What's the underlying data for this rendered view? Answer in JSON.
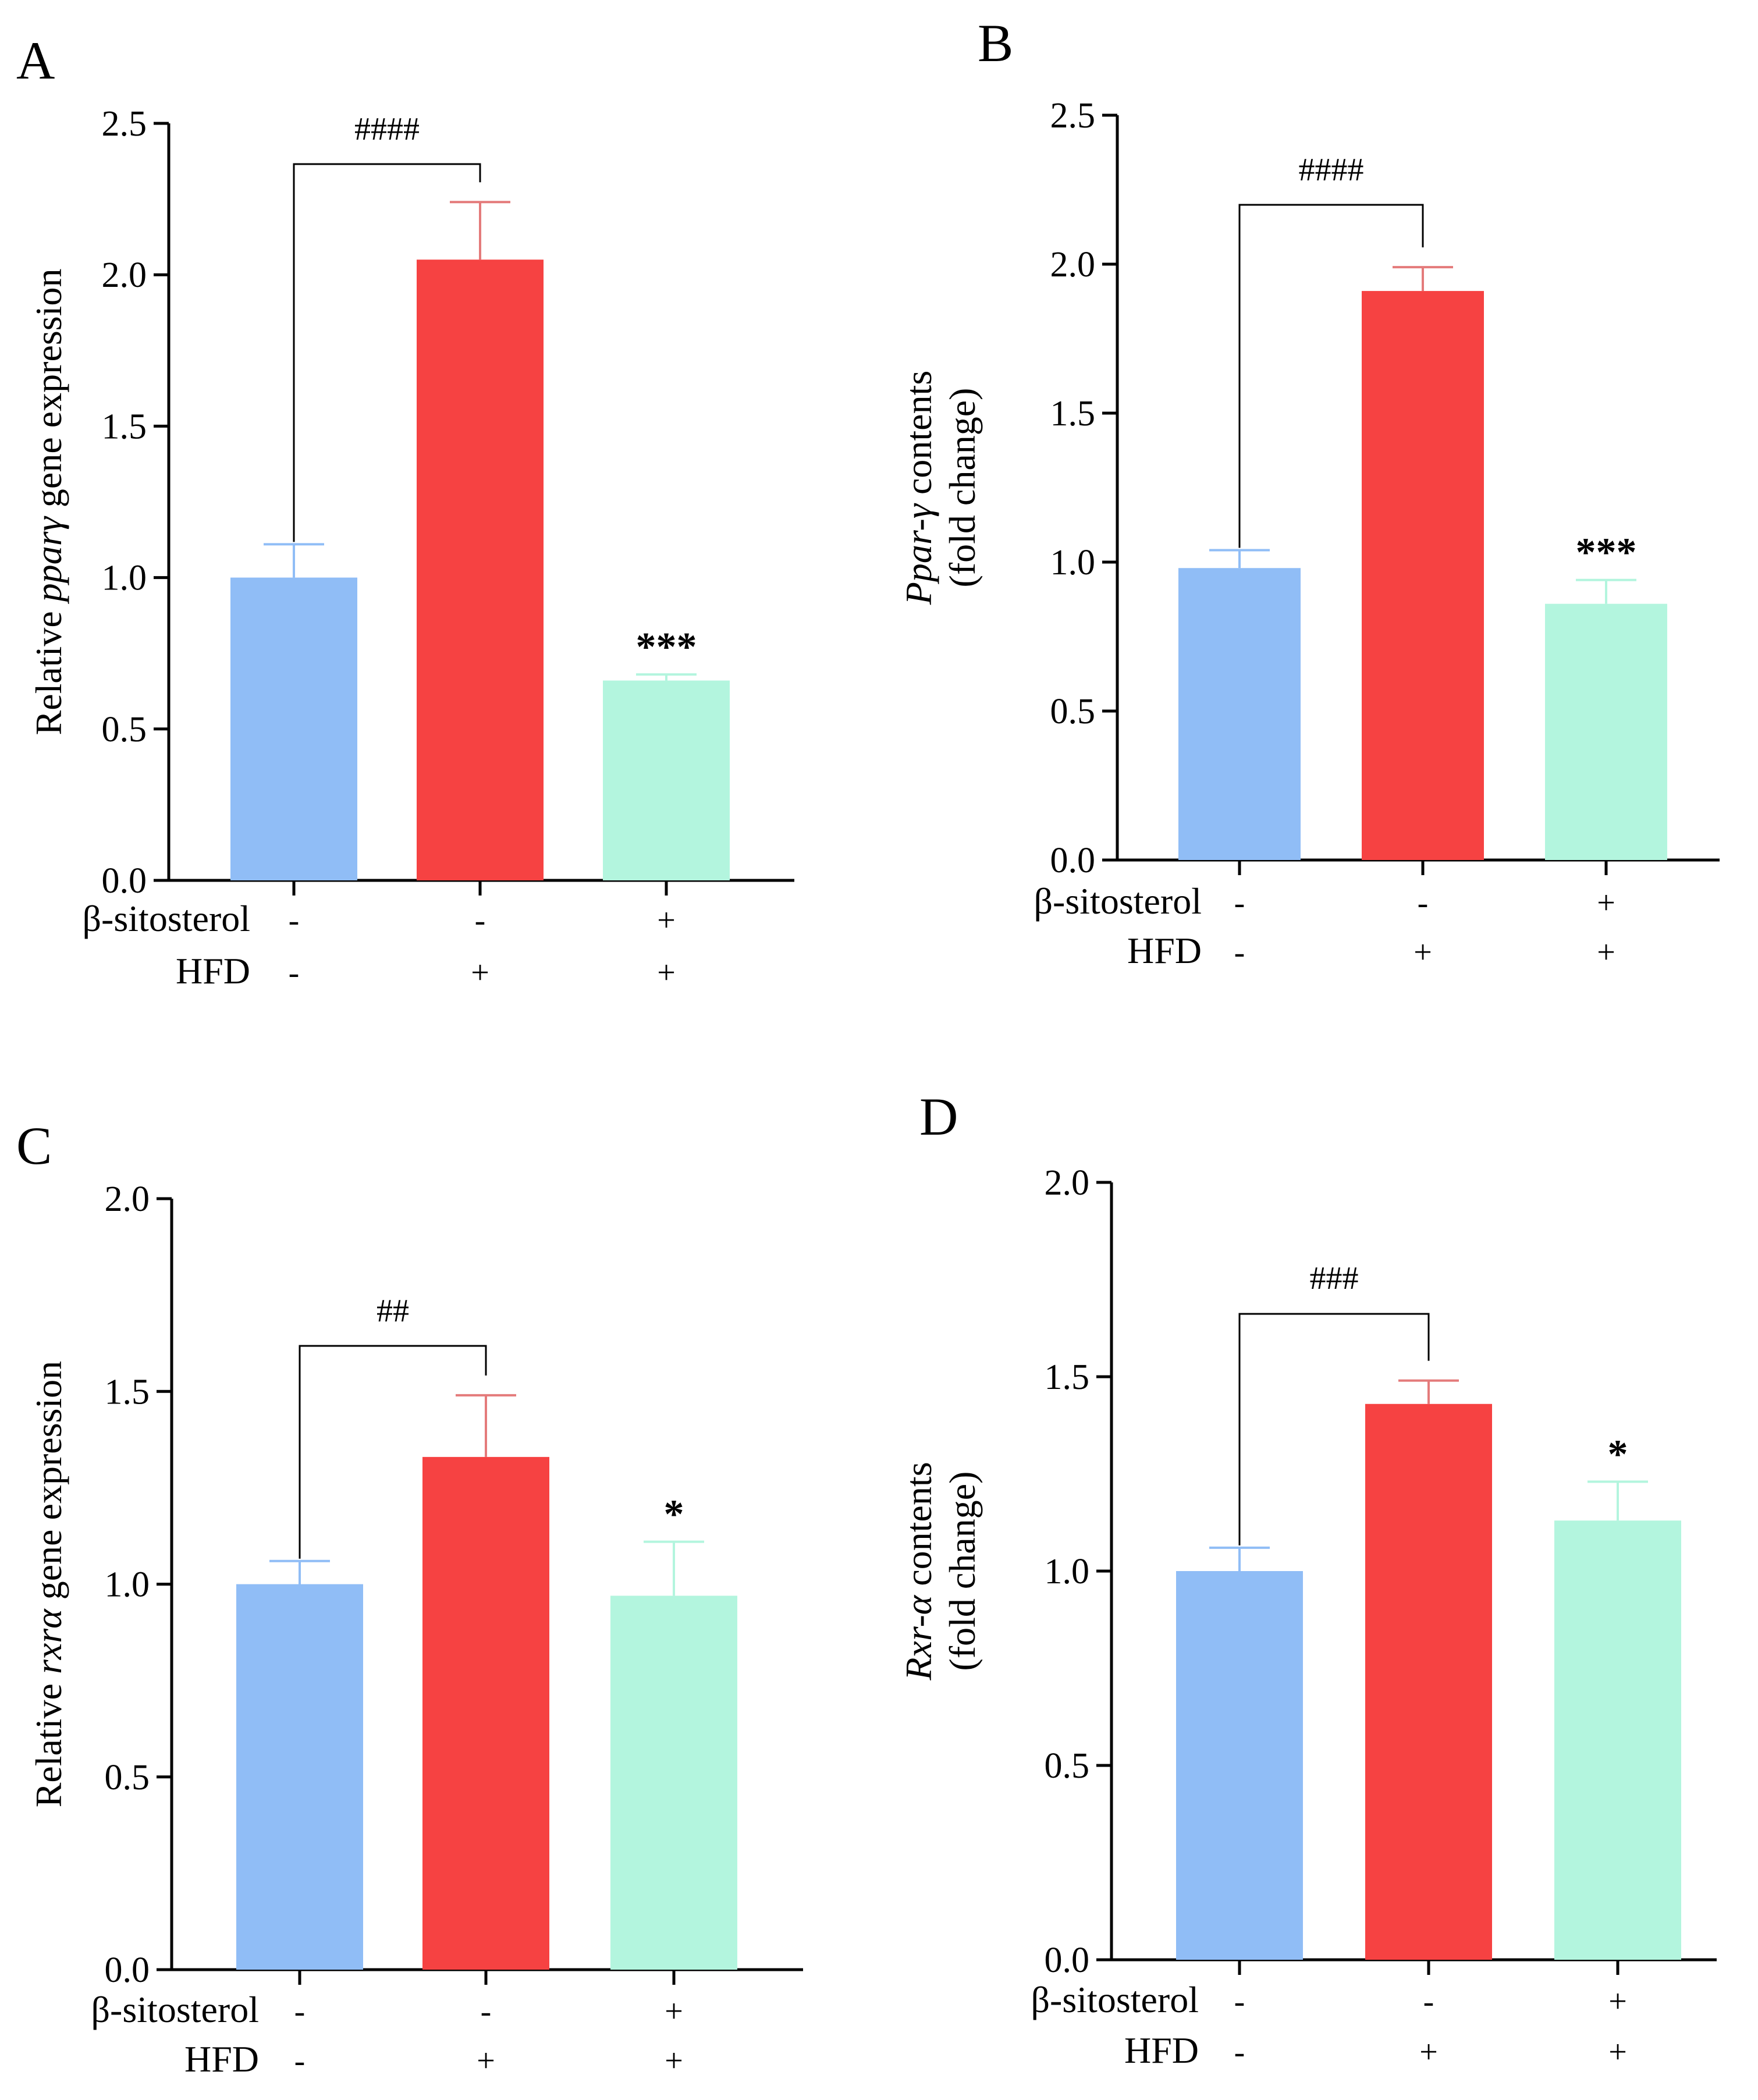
{
  "chart_data": [
    {
      "panel": "A",
      "type": "bar",
      "ylabel_prefix": "Relative ",
      "ylabel_italic": "pparγ",
      "ylabel_suffix": " gene expression",
      "ylabel_line2": "",
      "ylim": [
        0,
        2.5
      ],
      "yticks": [
        "0.0",
        "0.5",
        "1.0",
        "1.5",
        "2.0",
        "2.5"
      ],
      "ytick_values": [
        0,
        0.5,
        1.0,
        1.5,
        2.0,
        2.5
      ],
      "values": [
        1.0,
        2.05,
        0.66
      ],
      "errors": [
        0.11,
        0.19,
        0.02
      ],
      "annotations": [
        "",
        "",
        "***"
      ],
      "bracket": {
        "from": 0,
        "to": 1,
        "label": "####"
      },
      "row_labels": [
        "β-sitosterol",
        "HFD"
      ],
      "rows": [
        [
          "-",
          "-",
          "+"
        ],
        [
          "-",
          "+",
          "+"
        ]
      ]
    },
    {
      "panel": "B",
      "type": "bar",
      "ylabel_prefix": "",
      "ylabel_italic": "Ppar-γ",
      "ylabel_suffix": " contents",
      "ylabel_line2": "(fold change)",
      "ylim": [
        0,
        2.5
      ],
      "yticks": [
        "0.0",
        "0.5",
        "1.0",
        "1.5",
        "2.0",
        "2.5"
      ],
      "ytick_values": [
        0,
        0.5,
        1.0,
        1.5,
        2.0,
        2.5
      ],
      "values": [
        0.98,
        1.91,
        0.86
      ],
      "errors": [
        0.06,
        0.08,
        0.08
      ],
      "annotations": [
        "",
        "",
        "***"
      ],
      "bracket": {
        "from": 0,
        "to": 1,
        "label": "####"
      },
      "row_labels": [
        "β-sitosterol",
        "HFD"
      ],
      "rows": [
        [
          "-",
          "-",
          "+"
        ],
        [
          "-",
          "+",
          "+"
        ]
      ]
    },
    {
      "panel": "C",
      "type": "bar",
      "ylabel_prefix": "Relative ",
      "ylabel_italic": "rxrα",
      "ylabel_suffix": " gene expression",
      "ylabel_line2": "",
      "ylim": [
        0,
        2.0
      ],
      "yticks": [
        "0.0",
        "0.5",
        "1.0",
        "1.5",
        "2.0"
      ],
      "ytick_values": [
        0,
        0.5,
        1.0,
        1.5,
        2.0
      ],
      "values": [
        1.0,
        1.33,
        0.97
      ],
      "errors": [
        0.06,
        0.16,
        0.14
      ],
      "annotations": [
        "",
        "",
        "*"
      ],
      "bracket": {
        "from": 0,
        "to": 1,
        "label": "##"
      },
      "row_labels": [
        "β-sitosterol",
        "HFD"
      ],
      "rows": [
        [
          "-",
          "-",
          "+"
        ],
        [
          "-",
          "+",
          "+"
        ]
      ]
    },
    {
      "panel": "D",
      "type": "bar",
      "ylabel_prefix": "",
      "ylabel_italic": "Rxr-α",
      "ylabel_suffix": " contents",
      "ylabel_line2": "(fold change)",
      "ylim": [
        0,
        2.0
      ],
      "yticks": [
        "0.0",
        "0.5",
        "1.0",
        "1.5",
        "2.0"
      ],
      "ytick_values": [
        0,
        0.5,
        1.0,
        1.5,
        2.0
      ],
      "values": [
        1.0,
        1.43,
        1.13
      ],
      "errors": [
        0.06,
        0.06,
        0.1
      ],
      "annotations": [
        "",
        "",
        "*"
      ],
      "bracket": {
        "from": 0,
        "to": 1,
        "label": "###"
      },
      "row_labels": [
        "β-sitosterol",
        "HFD"
      ],
      "rows": [
        [
          "-",
          "-",
          "+"
        ],
        [
          "-",
          "+",
          "+"
        ]
      ]
    }
  ],
  "colors": {
    "bars": [
      "#90bdf6",
      "#f64242",
      "#b3f5de"
    ],
    "errors": [
      "#90bdf6",
      "#e47b7b",
      "#b3f5de"
    ]
  }
}
